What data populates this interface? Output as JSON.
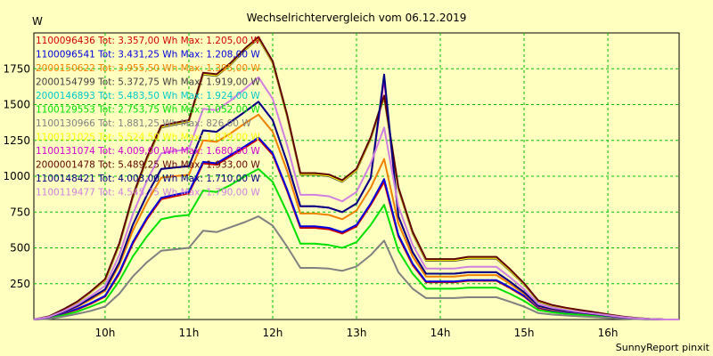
{
  "chart_data": {
    "type": "line",
    "title": "Wechselrichtervergleich vom 06.12.2019",
    "ylabel": "W",
    "footer": "SunnyReport pinxit",
    "xlim": [
      9.15,
      16.85
    ],
    "ylim": [
      0,
      2000
    ],
    "yticks": [
      250,
      500,
      750,
      1000,
      1250,
      1500,
      1750
    ],
    "xticks": [
      {
        "value": 10,
        "label": "10h"
      },
      {
        "value": 11,
        "label": "11h"
      },
      {
        "value": 12,
        "label": "12h"
      },
      {
        "value": 13,
        "label": "13h"
      },
      {
        "value": 14,
        "label": "14h"
      },
      {
        "value": 15,
        "label": "15h"
      },
      {
        "value": 16,
        "label": "16h"
      }
    ],
    "grid": true,
    "legend_position": "top-left",
    "x": [
      9.15,
      9.33,
      9.5,
      9.67,
      9.83,
      10.0,
      10.17,
      10.33,
      10.5,
      10.67,
      10.83,
      11.0,
      11.17,
      11.33,
      11.5,
      11.67,
      11.83,
      12.0,
      12.17,
      12.33,
      12.5,
      12.67,
      12.83,
      13.0,
      13.17,
      13.33,
      13.5,
      13.67,
      13.83,
      14.0,
      14.17,
      14.33,
      14.5,
      14.67,
      14.83,
      15.0,
      15.17,
      15.33,
      15.5,
      15.67,
      15.83,
      16.0,
      16.17,
      16.33,
      16.5,
      16.67,
      16.85
    ],
    "series": [
      {
        "name": "1100096436",
        "legend": "1100096436 Tot: 3.357,00 Wh Max: 1.205,00 W",
        "color": "#d00000",
        "values": [
          0,
          10,
          40,
          70,
          110,
          160,
          320,
          530,
          700,
          840,
          860,
          880,
          1090,
          1080,
          1140,
          1200,
          1260,
          1150,
          900,
          640,
          640,
          630,
          600,
          650,
          800,
          960,
          580,
          380,
          260,
          260,
          260,
          270,
          270,
          270,
          220,
          160,
          80,
          60,
          50,
          40,
          30,
          20,
          10,
          5,
          2,
          0,
          0
        ]
      },
      {
        "name": "1100096541",
        "legend": "1100096541 Tot: 3.431,25 Wh Max: 1.208,00 W",
        "color": "#0000e0",
        "values": [
          0,
          12,
          45,
          75,
          115,
          165,
          330,
          540,
          710,
          850,
          870,
          890,
          1100,
          1090,
          1150,
          1210,
          1270,
          1160,
          910,
          650,
          650,
          640,
          610,
          660,
          810,
          980,
          590,
          390,
          265,
          265,
          265,
          275,
          275,
          275,
          225,
          165,
          85,
          65,
          52,
          42,
          32,
          22,
          12,
          6,
          2,
          0,
          0
        ]
      },
      {
        "name": "2000150622",
        "legend": "2000150622 Tot: 3.955,50 Wh Max: 1.395,00 W",
        "color": "#f08000",
        "values": [
          0,
          15,
          50,
          90,
          140,
          200,
          380,
          620,
          820,
          990,
          1000,
          1010,
          1250,
          1240,
          1300,
          1370,
          1430,
          1310,
          1040,
          740,
          740,
          730,
          700,
          760,
          920,
          1120,
          670,
          440,
          300,
          300,
          300,
          310,
          310,
          310,
          250,
          180,
          90,
          70,
          58,
          46,
          36,
          24,
          14,
          7,
          3,
          0,
          0
        ]
      },
      {
        "name": "2000154799",
        "legend": "2000154799 Tot: 5.372,75 Wh Max: 1.919,00 W",
        "color": "#404040",
        "values": [
          0,
          20,
          65,
          120,
          190,
          270,
          520,
          850,
          1120,
          1340,
          1360,
          1380,
          1710,
          1700,
          1780,
          1880,
          1960,
          1790,
          1420,
          1010,
          1010,
          1000,
          960,
          1040,
          1260,
          1550,
          910,
          600,
          410,
          410,
          410,
          425,
          425,
          425,
          340,
          245,
          125,
          95,
          78,
          62,
          48,
          33,
          19,
          10,
          4,
          0,
          0
        ]
      },
      {
        "name": "2000146893",
        "legend": "2000146893 Tot: 5.483,50 Wh Max: 1.924,00 W",
        "color": "#00c8c8",
        "values": [
          0,
          22,
          70,
          125,
          195,
          280,
          530,
          860,
          1130,
          1350,
          1370,
          1390,
          1720,
          1710,
          1790,
          1890,
          1970,
          1800,
          1430,
          1020,
          1020,
          1010,
          970,
          1050,
          1270,
          1560,
          920,
          610,
          420,
          420,
          420,
          435,
          435,
          435,
          350,
          250,
          130,
          100,
          80,
          64,
          50,
          34,
          20,
          11,
          4,
          0,
          0
        ]
      },
      {
        "name": "1100129553",
        "legend": "1100129553 Tot: 2.753,75 Wh Max: 1.052,00 W",
        "color": "#00e000",
        "values": [
          0,
          8,
          30,
          55,
          90,
          130,
          270,
          440,
          580,
          700,
          720,
          730,
          900,
          890,
          940,
          1000,
          1050,
          960,
          750,
          530,
          530,
          520,
          500,
          540,
          660,
          800,
          480,
          320,
          215,
          215,
          215,
          222,
          222,
          222,
          180,
          130,
          65,
          50,
          40,
          32,
          25,
          17,
          9,
          4,
          2,
          0,
          0
        ]
      },
      {
        "name": "1100130966",
        "legend": "1100130966 Tot: 1.881,25 Wh Max: 826,00 W",
        "color": "#808080",
        "values": [
          0,
          5,
          20,
          40,
          60,
          90,
          180,
          300,
          400,
          480,
          490,
          500,
          620,
          610,
          645,
          680,
          720,
          655,
          510,
          360,
          360,
          355,
          340,
          370,
          450,
          550,
          330,
          215,
          150,
          150,
          150,
          155,
          155,
          155,
          125,
          90,
          45,
          35,
          28,
          22,
          17,
          11,
          6,
          3,
          1,
          0,
          0
        ]
      },
      {
        "name": "1100131025",
        "legend": "1100131025 Tot: 5.524,50 Wh Max: 1.879,00 W",
        "color": "#ffff00",
        "values": [
          0,
          21,
          68,
          122,
          192,
          275,
          525,
          855,
          1125,
          1345,
          1365,
          1385,
          1715,
          1705,
          1785,
          1885,
          1965,
          1795,
          1425,
          1015,
          1015,
          1005,
          965,
          1045,
          1265,
          1555,
          915,
          605,
          415,
          415,
          415,
          430,
          430,
          430,
          345,
          248,
          128,
          98,
          79,
          63,
          49,
          33,
          19,
          10,
          4,
          0,
          0
        ]
      },
      {
        "name": "1100131074",
        "legend": "1100131074 Tot: 4.009,00 Wh Max: 1.680,00 W",
        "color": "#d000d0",
        "values": [
          0,
          16,
          52,
          95,
          150,
          210,
          400,
          660,
          870,
          1050,
          1060,
          1070,
          1320,
          1310,
          1380,
          1450,
          1520,
          1390,
          1100,
          790,
          790,
          780,
          750,
          810,
          990,
          1680,
          720,
          470,
          320,
          320,
          320,
          330,
          330,
          330,
          265,
          190,
          95,
          75,
          60,
          48,
          38,
          26,
          15,
          8,
          3,
          0,
          0
        ]
      },
      {
        "name": "2000001478",
        "legend": "2000001478 Tot: 5.489,25 Wh Max: 1.933,00 W",
        "color": "#600000",
        "values": [
          0,
          22,
          70,
          126,
          196,
          282,
          532,
          862,
          1132,
          1352,
          1372,
          1392,
          1722,
          1712,
          1792,
          1892,
          1972,
          1802,
          1432,
          1022,
          1022,
          1012,
          972,
          1052,
          1272,
          1562,
          922,
          612,
          422,
          422,
          422,
          437,
          437,
          437,
          352,
          252,
          132,
          102,
          82,
          66,
          52,
          36,
          21,
          11,
          4,
          0,
          0
        ]
      },
      {
        "name": "1100148421",
        "legend": "1100148421 Tot: 4.003,00 Wh Max: 1.710,00 W",
        "color": "#000080",
        "values": [
          0,
          16,
          52,
          95,
          150,
          210,
          400,
          660,
          870,
          1050,
          1060,
          1070,
          1320,
          1310,
          1380,
          1450,
          1520,
          1390,
          1100,
          790,
          790,
          780,
          750,
          810,
          990,
          1710,
          720,
          470,
          320,
          320,
          320,
          330,
          330,
          330,
          265,
          190,
          95,
          75,
          60,
          48,
          38,
          26,
          15,
          8,
          3,
          0,
          0
        ]
      },
      {
        "name": "1100119477",
        "legend": "1100119477 Tot: 4.545,75 Wh Max: 1.790,00 W",
        "color": "#d080e0",
        "values": [
          0,
          18,
          58,
          105,
          165,
          235,
          450,
          735,
          970,
          1160,
          1175,
          1190,
          1470,
          1460,
          1530,
          1610,
          1690,
          1540,
          1220,
          870,
          870,
          860,
          825,
          890,
          1090,
          1340,
          790,
          520,
          355,
          355,
          355,
          368,
          368,
          368,
          295,
          212,
          108,
          83,
          67,
          53,
          42,
          29,
          17,
          9,
          3,
          0,
          0
        ]
      }
    ]
  }
}
